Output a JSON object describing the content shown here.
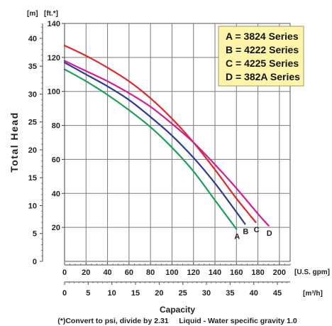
{
  "chart_data": {
    "type": "line",
    "ylabel": "Total Head",
    "xlabel": "Capacity",
    "y_unit_left": "[m]",
    "y_unit_right": "[ft.*]",
    "x_unit_top": "[U.S. gpm]",
    "x_unit_bottom": "[m³/h]",
    "x_ticks_gpm": [
      0,
      20,
      40,
      60,
      80,
      100,
      120,
      140,
      160,
      180,
      200
    ],
    "x_ticks_m3h": [
      0,
      5,
      10,
      15,
      20,
      25,
      30,
      35,
      40,
      45
    ],
    "y_ticks_ft": [
      20,
      40,
      60,
      80,
      100,
      120,
      140
    ],
    "y_ticks_m": [
      0,
      5,
      10,
      15,
      20,
      25,
      30,
      35,
      40
    ],
    "xlim": [
      0,
      210
    ],
    "ylim": [
      0,
      140
    ],
    "grid": true,
    "legend_position": "top-right",
    "legend": [
      "A = 3824 Series",
      "B = 4222 Series",
      "C = 4225 Series",
      "D = 382A Series"
    ],
    "series": [
      {
        "name": "A",
        "color": "#1aa05a",
        "x": [
          0,
          20,
          40,
          60,
          80,
          100,
          120,
          140,
          160
        ],
        "y": [
          113,
          106,
          98,
          89,
          79,
          67,
          53,
          36,
          19
        ]
      },
      {
        "name": "B",
        "color": "#2b3a9c",
        "x": [
          0,
          20,
          40,
          60,
          80,
          100,
          120,
          140,
          160,
          168
        ],
        "y": [
          117,
          110,
          103,
          95,
          85,
          74,
          61,
          46,
          29,
          22
        ]
      },
      {
        "name": "C",
        "color": "#e02828",
        "x": [
          0,
          20,
          40,
          60,
          80,
          100,
          120,
          140,
          160,
          178
        ],
        "y": [
          127,
          121,
          114,
          106,
          96,
          84,
          70,
          54,
          37,
          23
        ]
      },
      {
        "name": "D",
        "color": "#d31c9a",
        "x": [
          0,
          20,
          40,
          60,
          80,
          100,
          120,
          140,
          160,
          180,
          190
        ],
        "y": [
          118,
          112,
          106,
          99,
          91,
          81,
          70,
          57,
          43,
          28,
          21
        ]
      }
    ],
    "footnote": "(*)Convert to psi, divide by 2.31     Liquid - Water specific gravity 1.0"
  }
}
